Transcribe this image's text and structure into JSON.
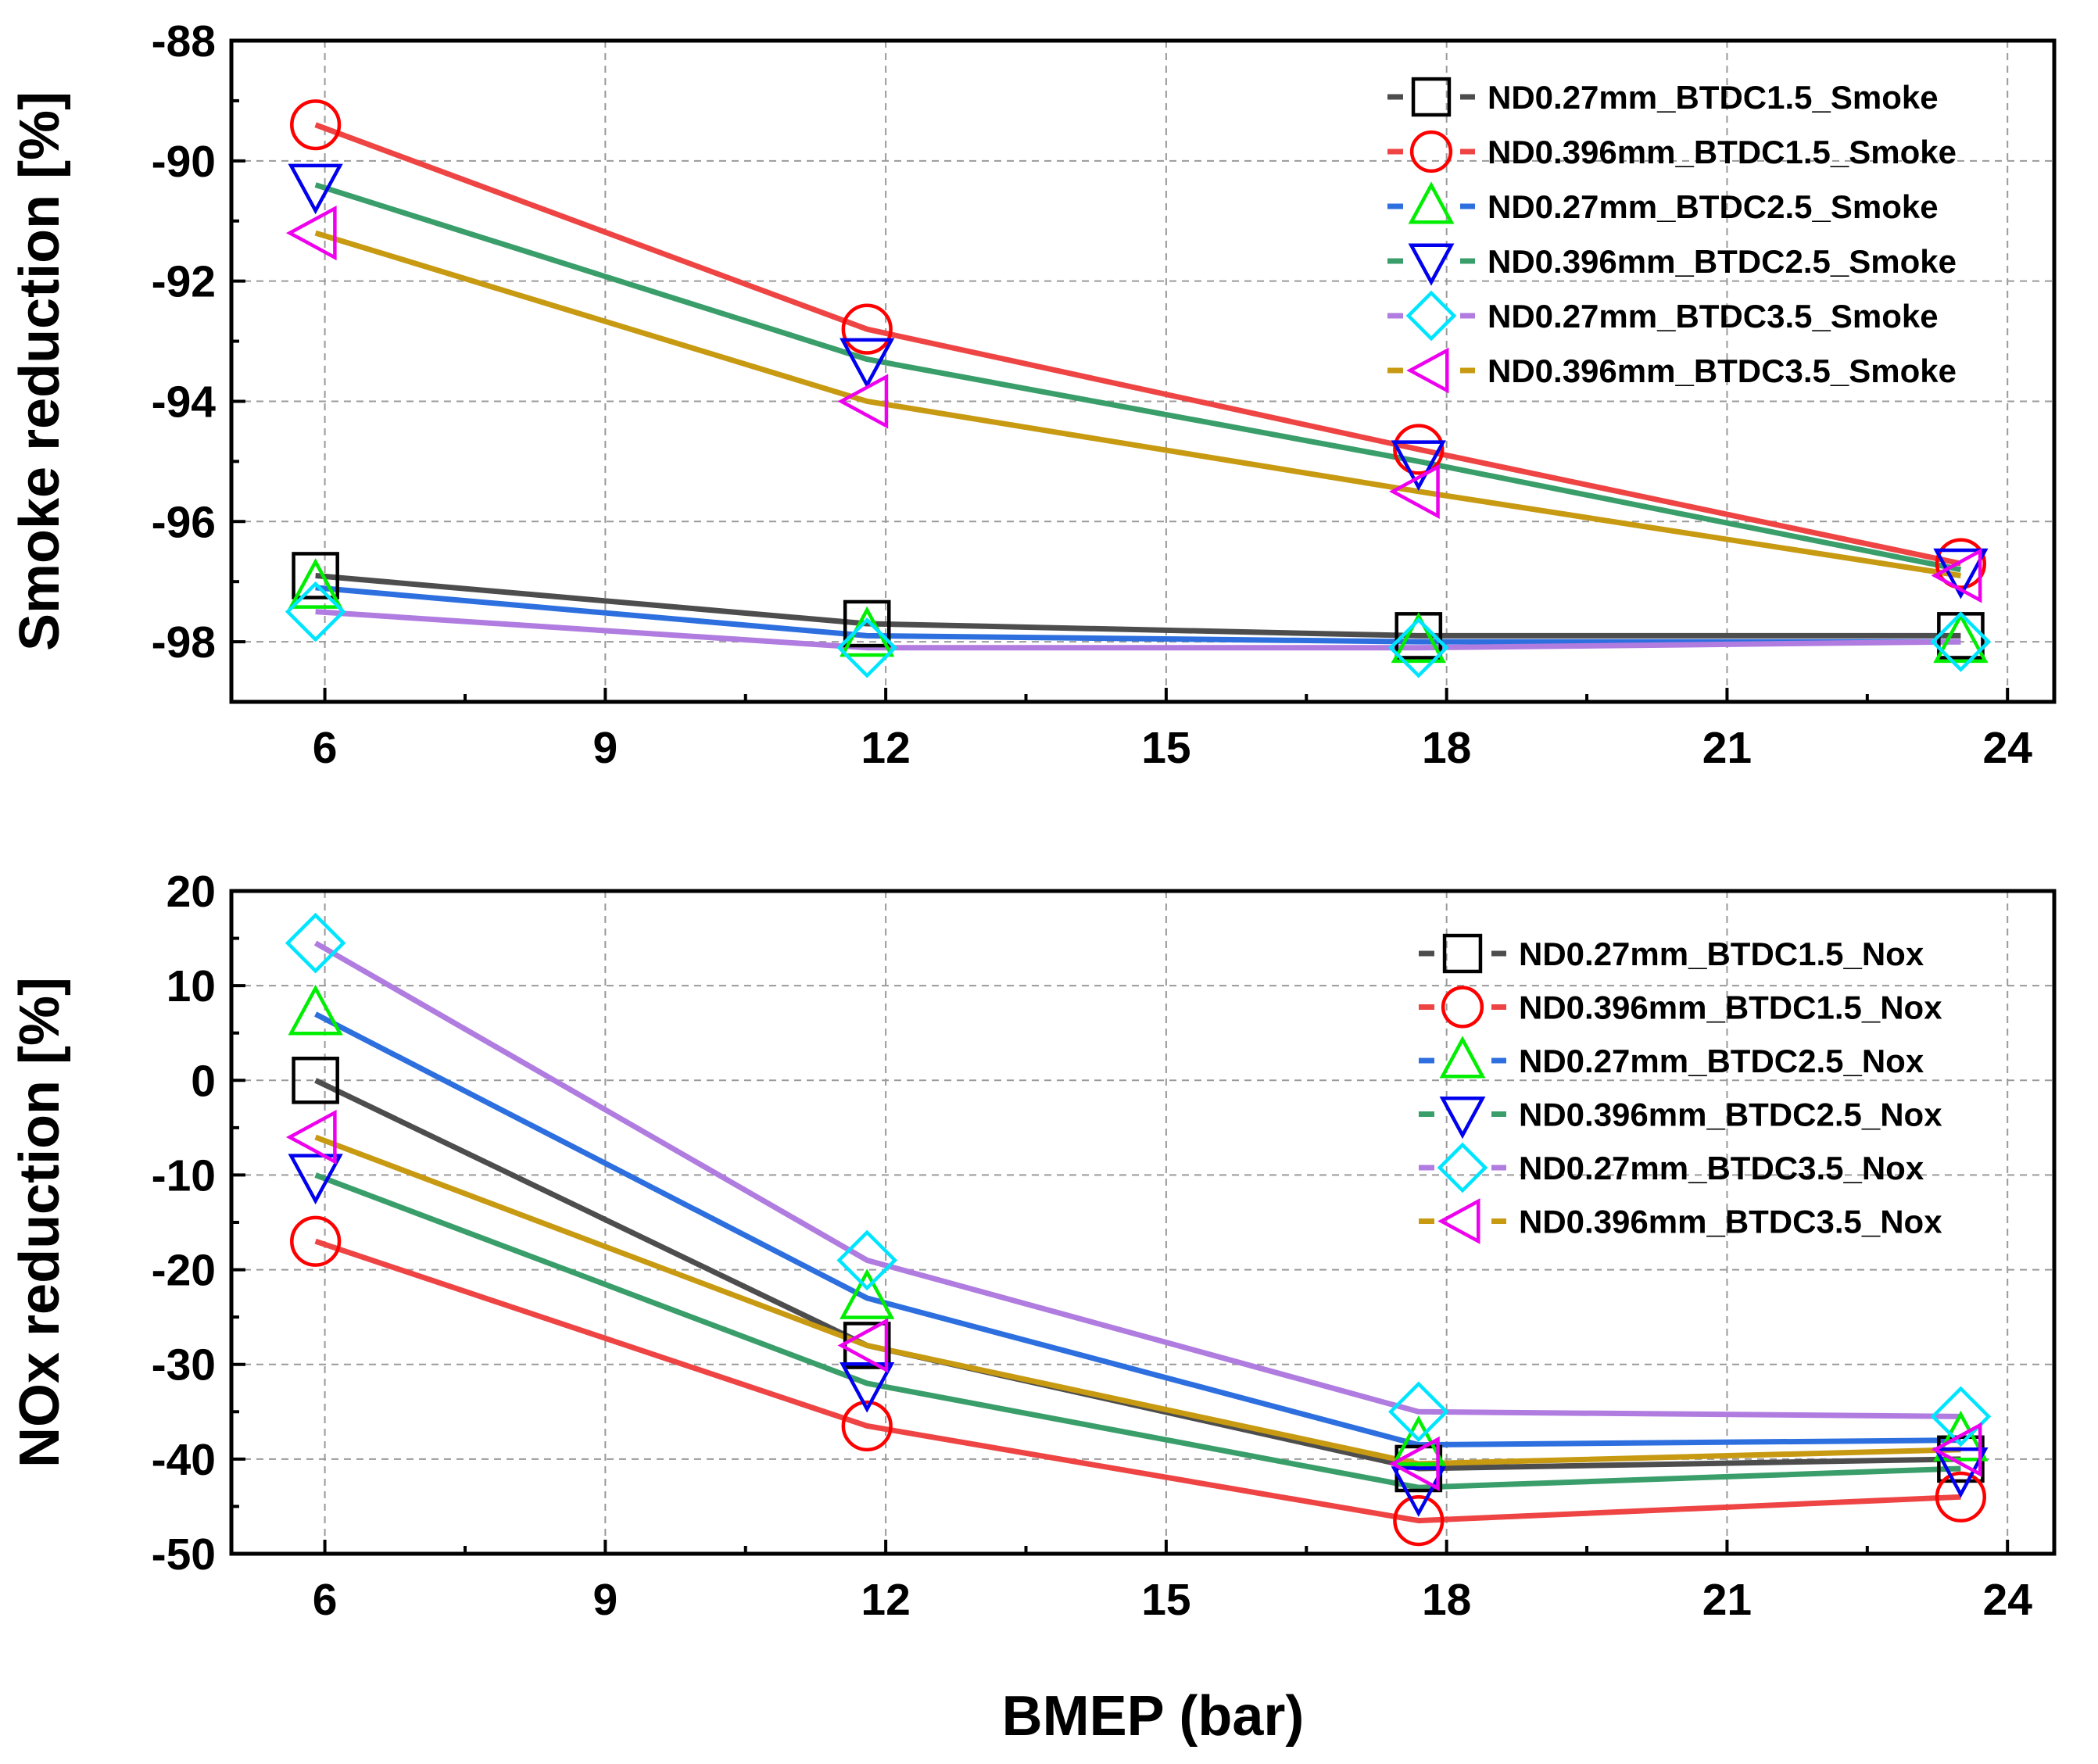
{
  "chart_data": [
    {
      "type": "line",
      "id": "smoke",
      "xlabel": "",
      "ylabel": "Smoke reduction [%]",
      "xlim": [
        5,
        24.5
      ],
      "ylim": [
        -99,
        -88
      ],
      "xticks": [
        6,
        9,
        12,
        15,
        18,
        21,
        24
      ],
      "yticks": [
        -88,
        -90,
        -92,
        -94,
        -96,
        -98
      ],
      "grid": true,
      "legend": "top-right",
      "x": [
        5.9,
        11.8,
        17.7,
        23.5
      ],
      "series": [
        {
          "name": "ND0.27mm_BTDC1.5_Smoke",
          "color": "#4d4d4d",
          "marker": "square",
          "marker_color": "#000000",
          "values": [
            -96.9,
            -97.7,
            -97.9,
            -97.9
          ]
        },
        {
          "name": "ND0.396mm_BTDC1.5_Smoke",
          "color": "#ee4444",
          "marker": "circle",
          "marker_color": "#ff0000",
          "values": [
            -89.4,
            -92.8,
            -94.8,
            -96.7
          ]
        },
        {
          "name": "ND0.27mm_BTDC2.5_Smoke",
          "color": "#2d6fdf",
          "marker": "triangle-up",
          "marker_color": "#00ee00",
          "values": [
            -97.1,
            -97.9,
            -98.0,
            -98.0
          ]
        },
        {
          "name": "ND0.396mm_BTDC2.5_Smoke",
          "color": "#3a9e6b",
          "marker": "triangle-down",
          "marker_color": "#0000ee",
          "values": [
            -90.4,
            -93.3,
            -95.0,
            -96.8
          ]
        },
        {
          "name": "ND0.27mm_BTDC3.5_Smoke",
          "color": "#b07ce0",
          "marker": "diamond",
          "marker_color": "#00e5ff",
          "values": [
            -97.5,
            -98.1,
            -98.1,
            -98.0
          ]
        },
        {
          "name": "ND0.396mm_BTDC3.5_Smoke",
          "color": "#c79a12",
          "marker": "triangle-left",
          "marker_color": "#ee00ee",
          "values": [
            -91.2,
            -94.0,
            -95.5,
            -96.9
          ]
        }
      ]
    },
    {
      "type": "line",
      "id": "nox",
      "xlabel": "BMEP (bar)",
      "ylabel": "NOx reduction [%]",
      "xlim": [
        5,
        24.5
      ],
      "ylim": [
        -50,
        20
      ],
      "xticks": [
        6,
        9,
        12,
        15,
        18,
        21,
        24
      ],
      "yticks": [
        20,
        10,
        0,
        -10,
        -20,
        -30,
        -40,
        -50
      ],
      "grid": true,
      "legend": "top-right",
      "x": [
        5.9,
        11.8,
        17.7,
        23.5
      ],
      "series": [
        {
          "name": "ND0.27mm_BTDC1.5_Nox",
          "color": "#4d4d4d",
          "marker": "square",
          "marker_color": "#000000",
          "values": [
            0,
            -28,
            -41,
            -40
          ]
        },
        {
          "name": "ND0.396mm_BTDC1.5_Nox",
          "color": "#ee4444",
          "marker": "circle",
          "marker_color": "#ff0000",
          "values": [
            -17,
            -36.5,
            -46.5,
            -44
          ]
        },
        {
          "name": "ND0.27mm_BTDC2.5_Nox",
          "color": "#2d6fdf",
          "marker": "triangle-up",
          "marker_color": "#00ee00",
          "values": [
            7,
            -23,
            -38.5,
            -38
          ]
        },
        {
          "name": "ND0.396mm_BTDC2.5_Nox",
          "color": "#3a9e6b",
          "marker": "triangle-down",
          "marker_color": "#0000ee",
          "values": [
            -10,
            -32,
            -43,
            -41
          ]
        },
        {
          "name": "ND0.27mm_BTDC3.5_Nox",
          "color": "#b07ce0",
          "marker": "diamond",
          "marker_color": "#00e5ff",
          "values": [
            14.5,
            -19,
            -35,
            -35.5
          ]
        },
        {
          "name": "ND0.396mm_BTDC3.5_Nox",
          "color": "#c79a12",
          "marker": "triangle-left",
          "marker_color": "#ee00ee",
          "values": [
            -6,
            -28,
            -40.5,
            -39
          ]
        }
      ]
    }
  ]
}
